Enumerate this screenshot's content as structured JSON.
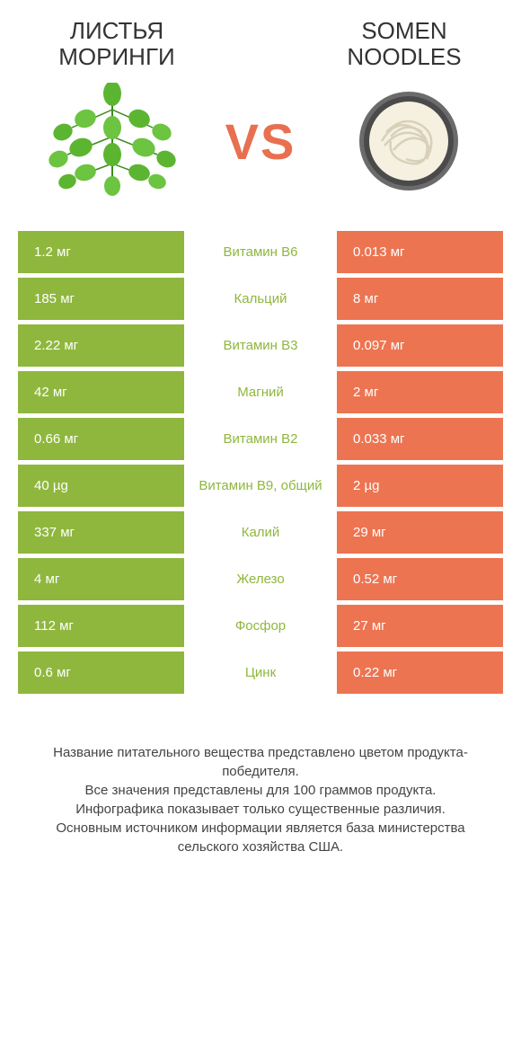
{
  "header": {
    "left_title": "Листья моринги",
    "right_title": "Somen noodles",
    "vs": "VS"
  },
  "colors": {
    "green": "#8fb73e",
    "orange": "#ed7451",
    "leaf_green": "#5cb531",
    "leaf_dark": "#3d8b1f",
    "bowl_outer": "#6b6b6b",
    "bowl_inner": "#f5f0e0",
    "vs_color": "#e87050"
  },
  "rows": [
    {
      "left": "1.2 мг",
      "mid": "Витамин B6",
      "right": "0.013 мг",
      "winner": "left"
    },
    {
      "left": "185 мг",
      "mid": "Кальций",
      "right": "8 мг",
      "winner": "left"
    },
    {
      "left": "2.22 мг",
      "mid": "Витамин B3",
      "right": "0.097 мг",
      "winner": "left"
    },
    {
      "left": "42 мг",
      "mid": "Магний",
      "right": "2 мг",
      "winner": "left"
    },
    {
      "left": "0.66 мг",
      "mid": "Витамин B2",
      "right": "0.033 мг",
      "winner": "left"
    },
    {
      "left": "40 µg",
      "mid": "Витамин B9, общий",
      "right": "2 µg",
      "winner": "left"
    },
    {
      "left": "337 мг",
      "mid": "Калий",
      "right": "29 мг",
      "winner": "left"
    },
    {
      "left": "4 мг",
      "mid": "Железо",
      "right": "0.52 мг",
      "winner": "left"
    },
    {
      "left": "112 мг",
      "mid": "Фосфор",
      "right": "27 мг",
      "winner": "left"
    },
    {
      "left": "0.6 мг",
      "mid": "Цинк",
      "right": "0.22 мг",
      "winner": "left"
    }
  ],
  "footer": [
    "Название питательного вещества представлено цветом продукта-победителя.",
    "Все значения представлены для 100 граммов продукта.",
    "Инфографика показывает только существенные различия.",
    "Основным источником информации является база министерства сельского хозяйства США."
  ]
}
